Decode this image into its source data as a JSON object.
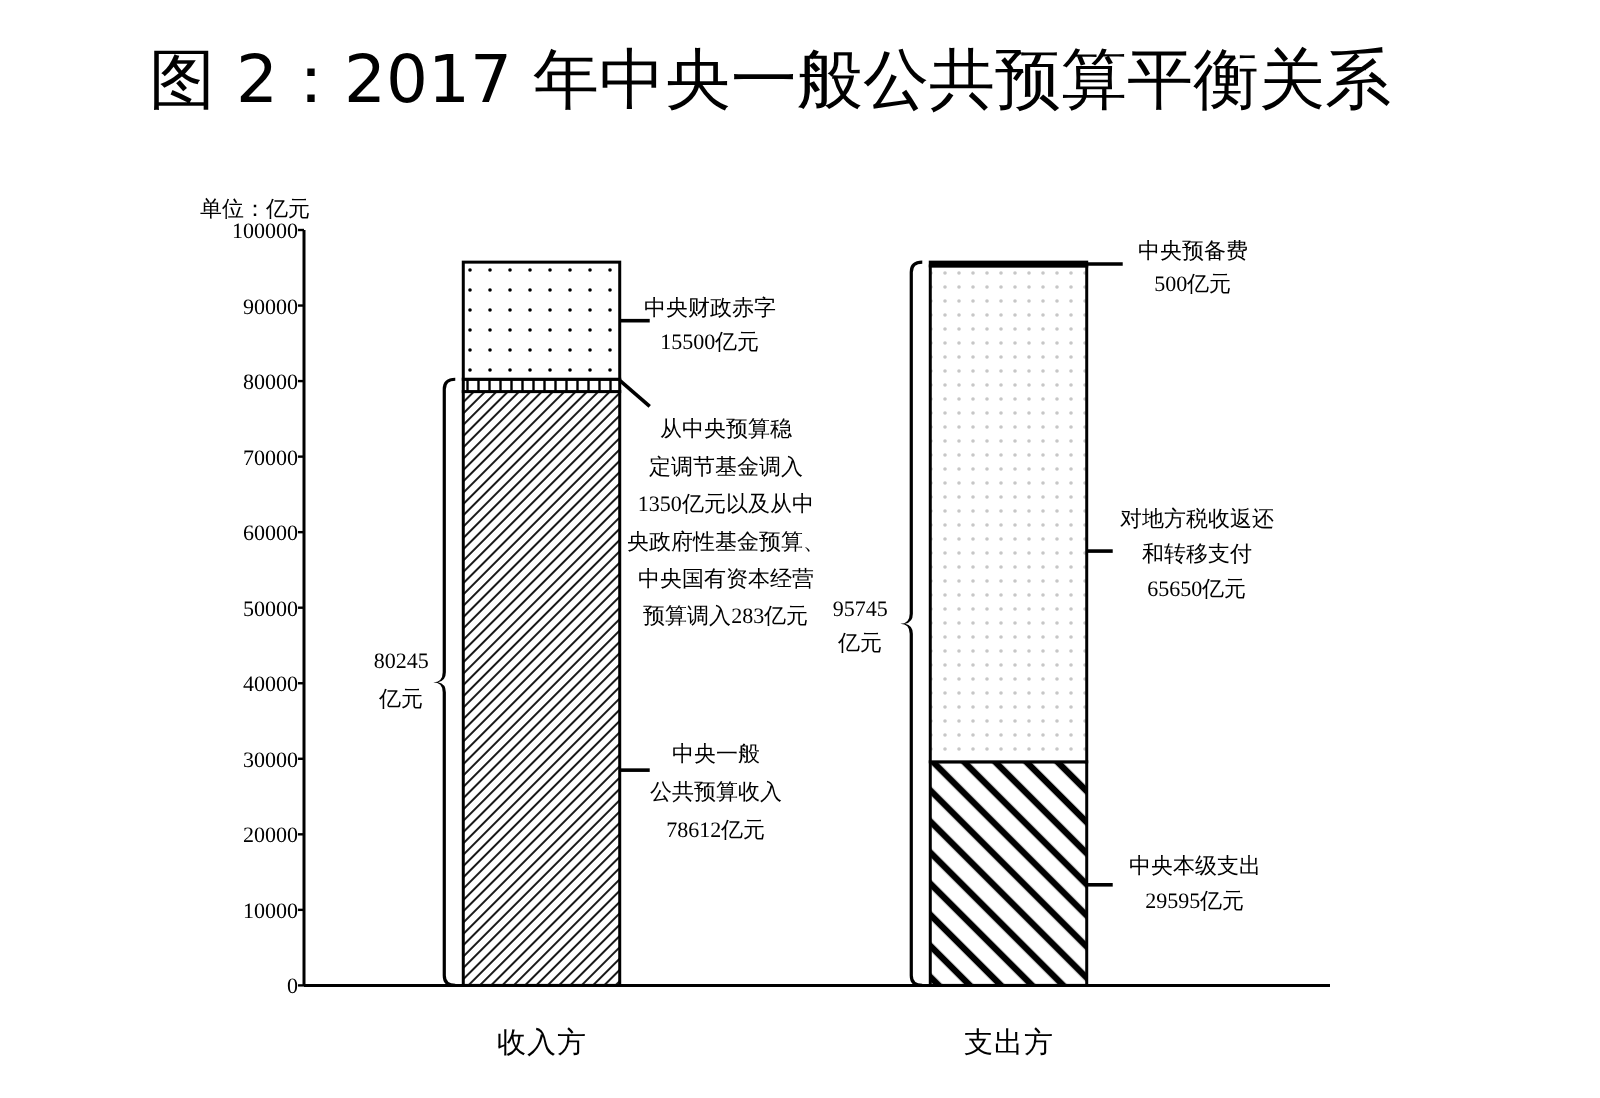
{
  "chart_data": {
    "type": "bar",
    "title": "图 2：2017 年中央一般公共预算平衡关系",
    "ylabel": "单位：亿元",
    "categories": [
      "收入方",
      "支出方"
    ],
    "stacked": true,
    "ylim": [
      0,
      100000
    ],
    "yticks": [
      0,
      10000,
      20000,
      30000,
      40000,
      50000,
      60000,
      70000,
      80000,
      90000,
      100000
    ],
    "series": [
      {
        "color": "#000000",
        "values": [
          78612,
          null
        ]
      },
      {
        "color": "#000000",
        "values": [
          1633,
          null
        ]
      },
      {
        "color": "#000000",
        "values": [
          15500,
          null
        ]
      },
      {
        "color": "#000000",
        "values": [
          null,
          29595
        ]
      },
      {
        "color": "#000000",
        "values": [
          null,
          65650
        ]
      },
      {
        "color": "#000000",
        "values": [
          null,
          500
        ]
      }
    ],
    "annotations": [
      "中央一般公共预算收入78612亿元",
      "从中央预算稳定调节基金调入1350亿元以及从中央政府性基金预算、中央国有资本经营预算调入283亿元",
      "中央财政赤字15500亿元",
      "80245亿元",
      "中央本级支出29595亿元",
      "对地方税收返还和转移支付65650亿元",
      "中央预备费500亿元",
      "95745亿元"
    ]
  }
}
